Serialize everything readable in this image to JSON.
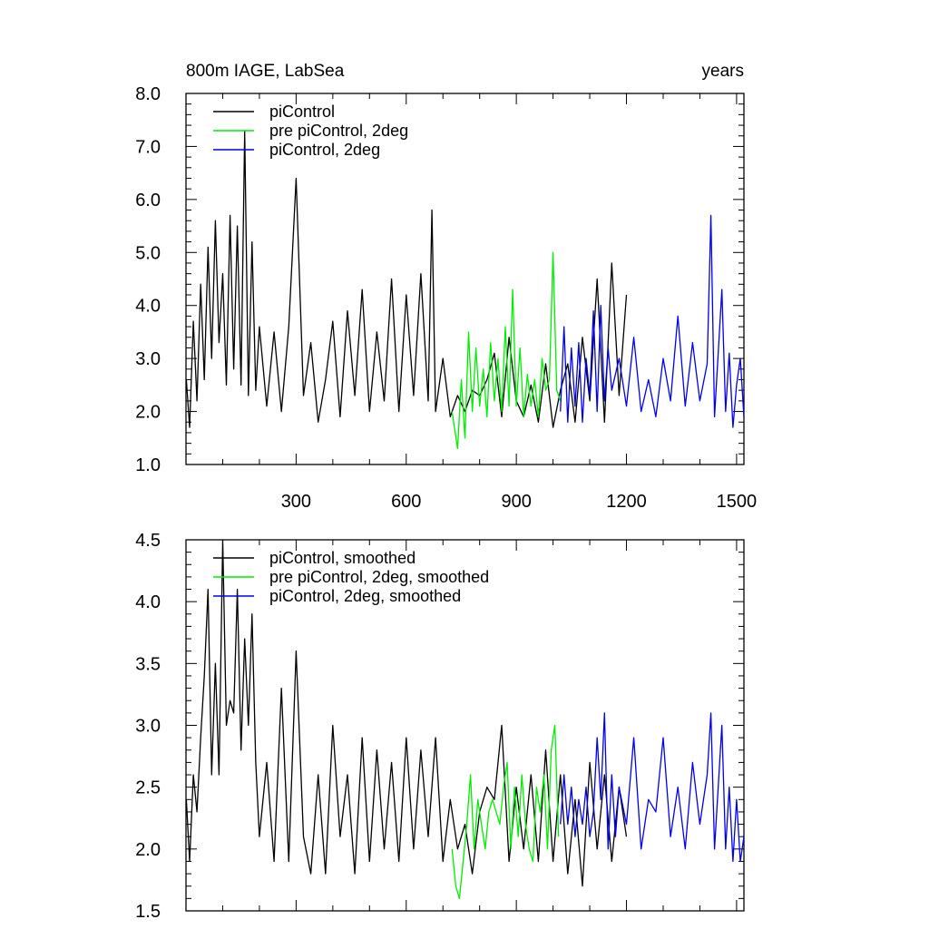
{
  "chart_data": [
    {
      "type": "line",
      "title": "800m IAGE, LabSea",
      "title_right": "years",
      "xlabel": "",
      "ylabel": "",
      "xlim": [
        0,
        1520
      ],
      "ylim": [
        1.0,
        8.0
      ],
      "xticks": [
        300,
        600,
        900,
        1200,
        1500
      ],
      "yticks": [
        1.0,
        2.0,
        3.0,
        4.0,
        5.0,
        6.0,
        7.0,
        8.0
      ],
      "ytick_labels": [
        "1.0",
        "2.0",
        "3.0",
        "4.0",
        "5.0",
        "6.0",
        "7.0",
        "8.0"
      ],
      "legend_position": "top-left",
      "grid": false,
      "series": [
        {
          "name": "piControl",
          "color": "#000000",
          "x_start": 1,
          "x_end": 1200,
          "x": [
            1,
            10,
            20,
            30,
            40,
            50,
            60,
            70,
            80,
            90,
            100,
            110,
            120,
            130,
            140,
            150,
            160,
            170,
            180,
            190,
            200,
            220,
            240,
            260,
            280,
            300,
            320,
            340,
            360,
            380,
            400,
            420,
            440,
            460,
            480,
            500,
            520,
            540,
            560,
            580,
            600,
            620,
            640,
            660,
            670,
            680,
            700,
            720,
            740,
            760,
            780,
            800,
            820,
            840,
            860,
            880,
            900,
            920,
            940,
            960,
            980,
            1000,
            1020,
            1040,
            1060,
            1080,
            1100,
            1120,
            1140,
            1160,
            1180,
            1200
          ],
          "y": [
            2.6,
            1.7,
            3.7,
            2.2,
            4.4,
            2.6,
            5.1,
            3.0,
            5.6,
            3.3,
            4.6,
            2.5,
            5.7,
            2.8,
            5.5,
            2.5,
            7.3,
            2.3,
            5.2,
            2.4,
            3.6,
            2.1,
            3.5,
            2.0,
            3.6,
            6.4,
            2.3,
            3.3,
            1.8,
            2.6,
            3.7,
            1.9,
            3.9,
            2.3,
            4.3,
            2.0,
            3.5,
            2.2,
            4.5,
            2.0,
            4.2,
            2.3,
            4.6,
            2.2,
            5.8,
            2.0,
            3.0,
            1.9,
            2.3,
            2.0,
            2.4,
            2.3,
            2.6,
            3.1,
            1.9,
            3.4,
            2.2,
            1.9,
            2.5,
            1.8,
            2.9,
            1.7,
            2.4,
            2.9,
            1.8,
            3.4,
            2.2,
            4.5,
            1.8,
            4.8,
            2.3,
            4.2
          ]
        },
        {
          "name": "pre piControl, 2deg",
          "color": "#00ee00",
          "x_start": 725,
          "x_end": 1020,
          "x": [
            725,
            740,
            750,
            760,
            770,
            780,
            790,
            800,
            810,
            820,
            830,
            840,
            850,
            860,
            870,
            880,
            890,
            900,
            910,
            920,
            930,
            940,
            950,
            960,
            970,
            980,
            990,
            1000,
            1010,
            1020
          ],
          "y": [
            2.0,
            1.3,
            2.6,
            1.5,
            3.5,
            2.0,
            3.2,
            2.1,
            2.8,
            1.9,
            3.3,
            2.2,
            3.0,
            2.0,
            3.6,
            2.1,
            4.3,
            2.1,
            3.2,
            1.9,
            2.7,
            2.1,
            2.6,
            1.9,
            3.0,
            2.4,
            2.6,
            5.0,
            2.4,
            2.2
          ]
        },
        {
          "name": "piControl, 2deg",
          "color": "#0000ee",
          "x_start": 1020,
          "x_end": 1520,
          "x": [
            1020,
            1030,
            1040,
            1050,
            1060,
            1070,
            1080,
            1090,
            1100,
            1110,
            1120,
            1130,
            1140,
            1150,
            1160,
            1180,
            1200,
            1220,
            1240,
            1260,
            1280,
            1300,
            1320,
            1340,
            1360,
            1380,
            1400,
            1420,
            1430,
            1440,
            1460,
            1470,
            1480,
            1490,
            1500,
            1510,
            1520
          ],
          "y": [
            2.0,
            3.6,
            1.8,
            3.2,
            2.1,
            3.3,
            1.8,
            3.0,
            2.3,
            3.9,
            2.0,
            4.0,
            2.2,
            3.2,
            2.4,
            3.0,
            2.1,
            3.4,
            2.0,
            2.6,
            1.9,
            3.0,
            2.2,
            3.8,
            2.1,
            3.3,
            2.2,
            2.9,
            5.7,
            1.9,
            4.3,
            2.0,
            3.1,
            1.7,
            2.5,
            3.0,
            1.9
          ]
        }
      ]
    },
    {
      "type": "line",
      "title": "",
      "xlabel": "",
      "ylabel": "",
      "xlim": [
        0,
        1520
      ],
      "ylim": [
        1.5,
        4.5
      ],
      "xticks": [
        300,
        600,
        900,
        1200,
        1500
      ],
      "yticks": [
        1.5,
        2.0,
        2.5,
        3.0,
        3.5,
        4.0,
        4.5
      ],
      "ytick_labels": [
        "1.5",
        "2.0",
        "2.5",
        "3.0",
        "3.5",
        "4.0",
        "4.5"
      ],
      "legend_position": "top-left",
      "grid": false,
      "series": [
        {
          "name": "piControl, smoothed",
          "color": "#000000",
          "x": [
            1,
            10,
            20,
            30,
            40,
            50,
            60,
            70,
            80,
            90,
            100,
            110,
            120,
            130,
            140,
            150,
            160,
            170,
            180,
            190,
            200,
            220,
            240,
            260,
            280,
            300,
            320,
            340,
            360,
            380,
            400,
            420,
            440,
            460,
            480,
            500,
            520,
            540,
            560,
            580,
            600,
            620,
            640,
            660,
            680,
            700,
            720,
            740,
            760,
            780,
            800,
            820,
            840,
            860,
            880,
            900,
            920,
            940,
            960,
            980,
            1000,
            1020,
            1040,
            1060,
            1080,
            1100,
            1120,
            1140,
            1160,
            1180,
            1200
          ],
          "y": [
            2.4,
            1.9,
            2.6,
            2.3,
            2.9,
            3.4,
            4.1,
            2.6,
            3.5,
            2.6,
            4.5,
            3.0,
            3.2,
            3.1,
            4.1,
            2.8,
            3.7,
            3.0,
            3.9,
            2.7,
            2.1,
            2.7,
            1.9,
            3.3,
            1.9,
            3.6,
            2.1,
            1.8,
            2.6,
            1.8,
            3.0,
            2.1,
            2.6,
            1.8,
            2.9,
            1.9,
            2.8,
            2.0,
            2.7,
            1.9,
            2.9,
            2.0,
            2.8,
            2.1,
            2.9,
            1.9,
            2.4,
            2.0,
            2.2,
            1.8,
            2.3,
            2.5,
            2.4,
            3.0,
            1.9,
            2.5,
            2.0,
            2.6,
            1.9,
            2.8,
            1.9,
            2.6,
            1.8,
            2.4,
            1.7,
            2.7,
            2.0,
            2.6,
            1.9,
            2.5,
            2.1
          ]
        },
        {
          "name": "pre piControl, 2deg, smoothed",
          "color": "#00ee00",
          "x": [
            725,
            735,
            745,
            755,
            765,
            775,
            785,
            795,
            805,
            815,
            825,
            835,
            845,
            855,
            865,
            875,
            885,
            895,
            905,
            915,
            925,
            935,
            945,
            955,
            965,
            975,
            985,
            995,
            1005,
            1015
          ],
          "y": [
            2.0,
            1.7,
            1.6,
            1.9,
            2.2,
            2.6,
            2.0,
            2.4,
            2.2,
            2.0,
            2.3,
            2.4,
            2.3,
            2.2,
            2.5,
            2.7,
            2.0,
            2.5,
            2.1,
            2.6,
            2.2,
            2.0,
            1.9,
            2.5,
            2.3,
            2.6,
            2.0,
            2.8,
            3.0,
            2.1
          ]
        },
        {
          "name": "piControl, 2deg, smoothed",
          "color": "#0000ee",
          "x": [
            1020,
            1030,
            1040,
            1050,
            1060,
            1070,
            1080,
            1090,
            1100,
            1110,
            1120,
            1130,
            1140,
            1150,
            1160,
            1170,
            1180,
            1200,
            1220,
            1240,
            1260,
            1280,
            1300,
            1320,
            1340,
            1360,
            1380,
            1400,
            1420,
            1430,
            1440,
            1460,
            1470,
            1480,
            1490,
            1500,
            1510,
            1520
          ],
          "y": [
            2.2,
            2.6,
            2.2,
            2.5,
            2.1,
            2.4,
            2.2,
            2.5,
            2.1,
            2.3,
            2.9,
            2.4,
            3.1,
            2.0,
            2.6,
            2.1,
            2.5,
            2.2,
            2.9,
            2.0,
            2.4,
            2.3,
            2.9,
            2.1,
            2.5,
            2.0,
            2.7,
            2.2,
            2.6,
            3.1,
            2.0,
            3.0,
            2.0,
            2.5,
            1.9,
            2.4,
            1.9,
            2.1
          ]
        }
      ]
    }
  ]
}
